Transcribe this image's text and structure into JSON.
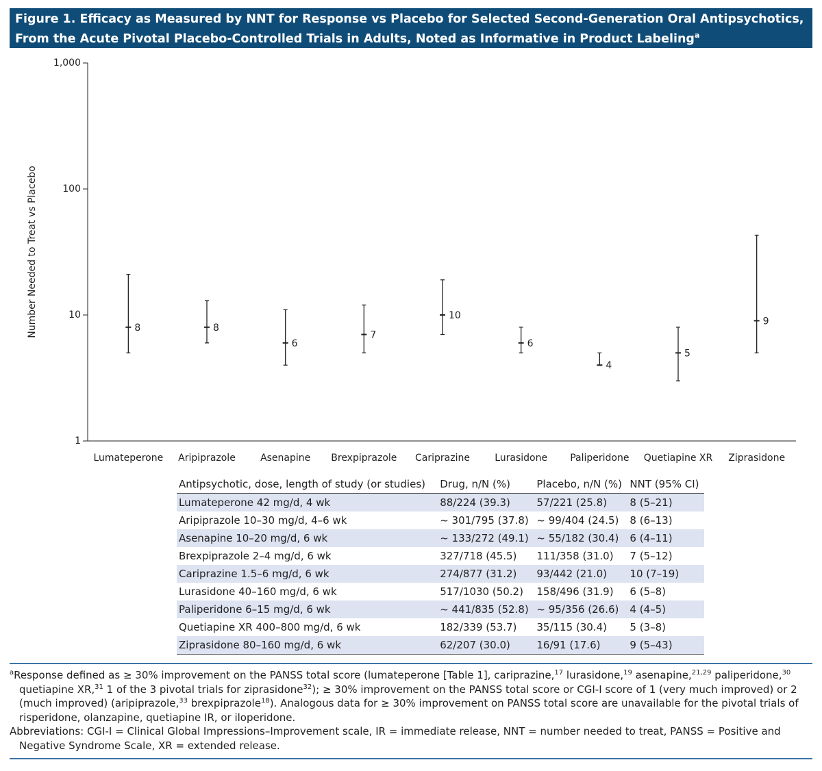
{
  "header": {
    "title": "Figure 1. Efficacy as Measured by NNT for Response vs Placebo for Selected Second-Generation Oral Antipsychotics, From the Acute Pivotal Placebo-Controlled Trials in Adults, Noted as Informative in Product Labeling",
    "title_sup": "a"
  },
  "chart_data": {
    "type": "errorbar",
    "y_label": "Number Needed to Treat  vs Placebo",
    "categories": [
      "Lumateperone",
      "Aripiprazole",
      "Asenapine",
      "Brexpiprazole",
      "Cariprazine",
      "Lurasidone",
      "Paliperidone",
      "Quetiapine XR",
      "Ziprasidone"
    ],
    "values": [
      8,
      8,
      6,
      7,
      10,
      6,
      4,
      5,
      9
    ],
    "ci_low": [
      5,
      6,
      4,
      5,
      7,
      5,
      4,
      3,
      5
    ],
    "ci_high": [
      21,
      13,
      11,
      12,
      19,
      8,
      5,
      8,
      43
    ],
    "color": "#222222",
    "y_scale": "log",
    "ylim": [
      1,
      1000
    ],
    "yticks": [
      1,
      10,
      100,
      {
        "value": 1000,
        "label": "1,000"
      }
    ],
    "grid": false
  },
  "table": {
    "columns": [
      "Antipsychotic, dose, length of study (or studies)",
      "Drug, n/N (%)",
      "Placebo, n/N (%)",
      "NNT (95% CI)"
    ],
    "rows": [
      [
        "Lumateperone 42 mg/d, 4 wk",
        "88/224 (39.3)",
        "57/221 (25.8)",
        "8 (5–21)"
      ],
      [
        "Aripiprazole 10–30 mg/d, 4–6 wk",
        "~ 301/795 (37.8)",
        "~ 99/404 (24.5)",
        "8 (6–13)"
      ],
      [
        "Asenapine 10–20 mg/d, 6 wk",
        "~ 133/272 (49.1)",
        "~ 55/182 (30.4)",
        "6 (4–11)"
      ],
      [
        "Brexpiprazole 2–4 mg/d, 6 wk",
        "327/718 (45.5)",
        "111/358 (31.0)",
        "7 (5–12)"
      ],
      [
        "Cariprazine 1.5–6 mg/d, 6 wk",
        "274/877 (31.2)",
        "93/442 (21.0)",
        "10 (7–19)"
      ],
      [
        "Lurasidone 40–160 mg/d, 6 wk",
        "517/1030 (50.2)",
        "158/496 (31.9)",
        "6 (5–8)"
      ],
      [
        "Paliperidone 6–15 mg/d, 6 wk",
        "~ 441/835 (52.8)",
        "~ 95/356 (26.6)",
        "4 (4–5)"
      ],
      [
        "Quetiapine XR 400–800 mg/d, 6 wk",
        "182/339 (53.7)",
        "35/115 (30.4)",
        "5 (3–8)"
      ],
      [
        "Ziprasidone 80–160 mg/d, 6 wk",
        "62/207 (30.0)",
        "16/91 (17.6)",
        "9 (5–43)"
      ]
    ]
  },
  "footnotes": [
    [
      {
        "sup": "a"
      },
      {
        "text": "Response defined as ≥ 30% improvement on the PANSS total score (lumateperone [Table 1], cariprazine,"
      },
      {
        "sup": "17"
      },
      {
        "text": " lurasidone,"
      },
      {
        "sup": "19"
      },
      {
        "text": " asenapine,"
      },
      {
        "sup": "21,29"
      },
      {
        "text": " paliperidone,"
      },
      {
        "sup": "30"
      },
      {
        "text": " quetiapine XR,"
      },
      {
        "sup": "31"
      },
      {
        "text": " 1 of the 3 pivotal trials for ziprasidone"
      },
      {
        "sup": "32"
      },
      {
        "text": "); ≥ 30% improvement on the PANSS total score or CGI-I score of 1 (very much improved) or 2 (much improved) (aripiprazole,"
      },
      {
        "sup": "33"
      },
      {
        "text": " brexpiprazole"
      },
      {
        "sup": "18"
      },
      {
        "text": "). Analogous data for ≥ 30% improvement on PANSS total score are unavailable for the pivotal trials of risperidone, olanzapine, quetiapine IR, or iloperidone."
      }
    ],
    [
      {
        "text": "Abbreviations: CGI-I = Clinical Global Impressions–Improvement scale, IR = immediate release, NNT = number needed to treat, PANSS = Positive and Negative Syndrome Scale, XR = extended release."
      }
    ]
  ]
}
